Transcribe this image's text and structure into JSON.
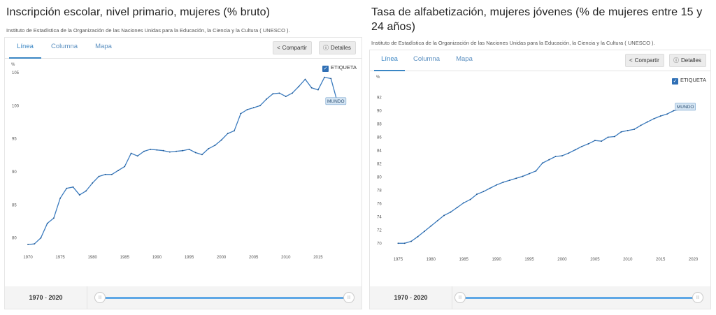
{
  "panels": [
    {
      "title": "Inscripción escolar, nivel primario, mujeres (% bruto)",
      "source": "Instituto de Estadística de la Organización de las Naciones Unidas para la Educación, la Ciencia y la Cultura ( UNESCO ).",
      "tabs": [
        "Línea",
        "Columna",
        "Mapa"
      ],
      "share_label": "Compartir",
      "details_label": "Detalles",
      "legend_label": "ETIQUETA",
      "range_start": "1970",
      "range_end": "2020",
      "range_sep": " - ",
      "knob_start": "|||",
      "knob_end": "|||"
    },
    {
      "title": "Tasa de alfabetización, mujeres jóvenes (% de mujeres entre 15 y 24 años)",
      "source": "Instituto de Estadística de la Organización de las Naciones Unidas para la Educación, la Ciencia y la Cultura ( UNESCO ).",
      "tabs": [
        "Línea",
        "Columna",
        "Mapa"
      ],
      "share_label": "Compartir",
      "details_label": "Detalles",
      "legend_label": "ETIQUETA",
      "range_start": "1970",
      "range_end": "2020",
      "range_sep": " - ",
      "knob_start": "|||",
      "knob_end": "|||"
    }
  ],
  "chart_data": [
    {
      "type": "line",
      "ylabel": "%",
      "xlim": [
        1970,
        2020
      ],
      "ylim": [
        78.8,
        105
      ],
      "xticks": [
        1970,
        1975,
        1980,
        1985,
        1990,
        1995,
        2000,
        2005,
        2010,
        2015
      ],
      "yticks": [
        80,
        85,
        90,
        95,
        100,
        105
      ],
      "line_color": "#3a7bbf",
      "series_label": "MUNDO",
      "series": [
        {
          "x": [
            1970,
            1971,
            1972,
            1973,
            1974,
            1975,
            1976,
            1977,
            1978,
            1979,
            1980,
            1981,
            1982,
            1983,
            1984,
            1985,
            1986,
            1987,
            1988,
            1989,
            1990,
            1991,
            1992,
            1993,
            1994,
            1995,
            1996,
            1997,
            1998,
            1999,
            2000,
            2001,
            2002,
            2003,
            2004,
            2005,
            2006,
            2007,
            2008,
            2009,
            2010,
            2011,
            2012,
            2013,
            2014,
            2015,
            2016,
            2017,
            2018,
            2019
          ],
          "y": [
            79.0,
            79.1,
            80.0,
            82.2,
            83.0,
            86.0,
            87.5,
            87.7,
            86.5,
            87.1,
            88.3,
            89.3,
            89.6,
            89.6,
            90.2,
            90.8,
            92.8,
            92.4,
            93.1,
            93.4,
            93.3,
            93.2,
            93.0,
            93.1,
            93.2,
            93.4,
            92.9,
            92.6,
            93.5,
            94.0,
            94.8,
            95.8,
            96.2,
            98.8,
            99.4,
            99.7,
            100.0,
            101.0,
            101.8,
            101.9,
            101.4,
            101.9,
            102.9,
            104.0,
            102.7,
            102.4,
            104.3,
            104.1,
            100.5,
            100.8
          ]
        }
      ]
    },
    {
      "type": "line",
      "ylabel": "%",
      "xlim": [
        1974,
        2021
      ],
      "ylim": [
        69.4,
        93
      ],
      "xticks": [
        1975,
        1980,
        1985,
        1990,
        1995,
        2000,
        2005,
        2010,
        2015,
        2020
      ],
      "yticks": [
        70,
        72,
        74,
        76,
        78,
        80,
        82,
        84,
        86,
        88,
        90,
        92
      ],
      "line_color": "#3a7bbf",
      "series_label": "MUNDO",
      "series": [
        {
          "x": [
            1975,
            1976,
            1977,
            1978,
            1979,
            1980,
            1981,
            1982,
            1983,
            1984,
            1985,
            1986,
            1987,
            1988,
            1989,
            1990,
            1991,
            1992,
            1993,
            1994,
            1995,
            1996,
            1997,
            1998,
            1999,
            2000,
            2001,
            2002,
            2003,
            2004,
            2005,
            2006,
            2007,
            2008,
            2009,
            2010,
            2011,
            2012,
            2013,
            2014,
            2015,
            2016,
            2017,
            2018,
            2019,
            2020
          ],
          "y": [
            70.0,
            70.0,
            70.3,
            71.0,
            71.8,
            72.6,
            73.4,
            74.2,
            74.7,
            75.4,
            76.1,
            76.6,
            77.4,
            77.8,
            78.3,
            78.8,
            79.2,
            79.5,
            79.8,
            80.1,
            80.5,
            80.9,
            82.1,
            82.6,
            83.1,
            83.2,
            83.6,
            84.1,
            84.6,
            85.0,
            85.5,
            85.4,
            86.0,
            86.1,
            86.8,
            87.0,
            87.2,
            87.8,
            88.3,
            88.8,
            89.2,
            89.5,
            90.0,
            90.2,
            90.5,
            90.7
          ]
        }
      ]
    }
  ]
}
